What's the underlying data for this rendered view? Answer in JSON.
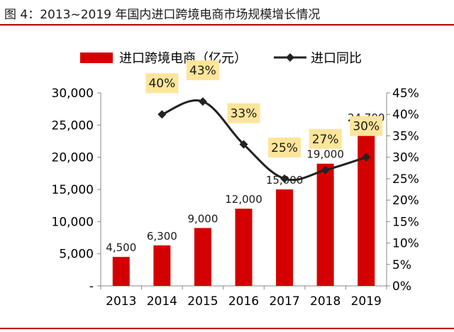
{
  "figure": {
    "title": "图 4：2013~2019 年国内进口跨境电商市场规模增长情况"
  },
  "chart_data": {
    "type": "bar",
    "categories": [
      "2013",
      "2014",
      "2015",
      "2016",
      "2017",
      "2018",
      "2019"
    ],
    "series": [
      {
        "name": "进口跨境电商（亿元）",
        "kind": "bar",
        "axis": "left",
        "color": "#d40000",
        "values": [
          4500,
          6300,
          9000,
          12000,
          15000,
          19000,
          24700
        ],
        "labels": [
          "4,500",
          "6,300",
          "9,000",
          "12,000",
          "15,000",
          "19,000",
          "24,700"
        ]
      },
      {
        "name": "进口同比",
        "kind": "line",
        "axis": "right",
        "color": "#222222",
        "values": [
          null,
          0.4,
          0.43,
          0.33,
          0.25,
          0.27,
          0.3
        ],
        "labels": [
          "",
          "40%",
          "43%",
          "33%",
          "25%",
          "27%",
          "30%"
        ]
      }
    ],
    "y_left": {
      "range": [
        0,
        30000
      ],
      "ticks": [
        0,
        5000,
        10000,
        15000,
        20000,
        25000,
        30000
      ],
      "tick_labels": [
        "-",
        "5,000",
        "10,000",
        "15,000",
        "20,000",
        "25,000",
        "30,000"
      ]
    },
    "y_right": {
      "range": [
        0,
        0.45
      ],
      "ticks": [
        0,
        0.05,
        0.1,
        0.15,
        0.2,
        0.25,
        0.3,
        0.35,
        0.4,
        0.45
      ],
      "tick_labels": [
        "0%",
        "5%",
        "10%",
        "15%",
        "20%",
        "25%",
        "30%",
        "35%",
        "40%",
        "45%"
      ]
    },
    "legend": {
      "placement": "top",
      "items": [
        "进口跨境电商（亿元）",
        "进口同比"
      ]
    },
    "colors": {
      "bar": "#d40000",
      "line": "#222222",
      "label_bg": "#fde59a",
      "rule": "#c00000"
    },
    "grid": false
  }
}
